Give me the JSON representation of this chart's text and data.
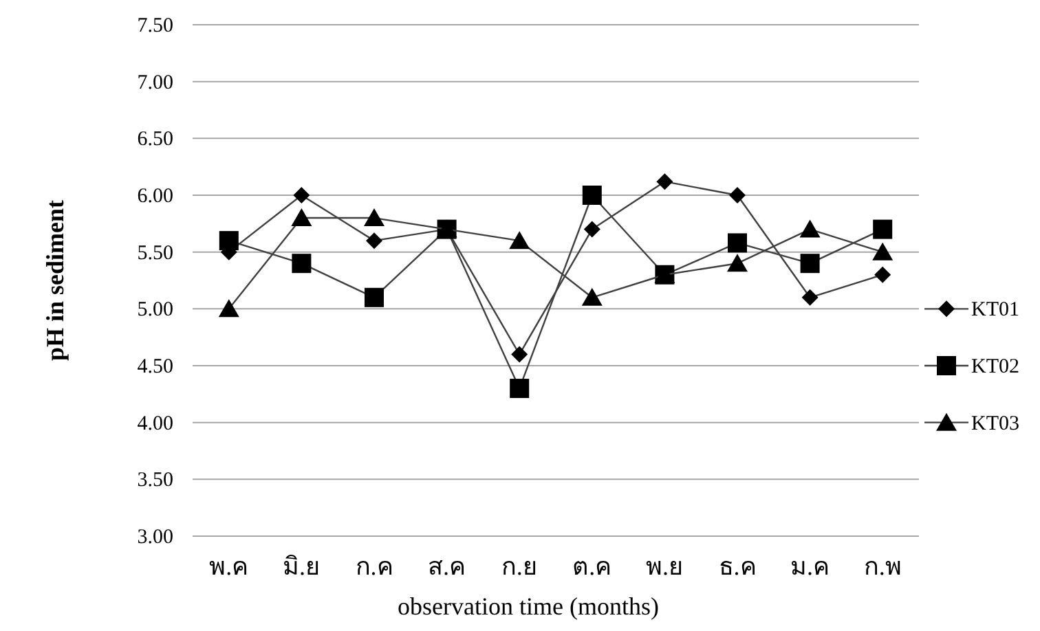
{
  "chart_data": {
    "type": "line",
    "xlabel": "observation time (months)",
    "ylabel": "pH in sediment",
    "categories": [
      "พ.ค",
      "มิ.ย",
      "ก.ค",
      "ส.ค",
      "ก.ย",
      "ต.ค",
      "พ.ย",
      "ธ.ค",
      "ม.ค",
      "ก.พ"
    ],
    "series": [
      {
        "name": "KT01",
        "color": "#000000",
        "marker": "diamond",
        "values": [
          5.5,
          6.0,
          5.6,
          5.7,
          4.6,
          5.7,
          6.12,
          6.0,
          5.1,
          5.3
        ]
      },
      {
        "name": "KT02",
        "color": "#000000",
        "marker": "square",
        "values": [
          5.6,
          5.4,
          5.1,
          5.7,
          4.3,
          6.0,
          5.3,
          5.58,
          5.4,
          5.7
        ]
      },
      {
        "name": "KT03",
        "color": "#000000",
        "marker": "triangle",
        "values": [
          5.0,
          5.8,
          5.8,
          5.7,
          5.6,
          5.1,
          5.3,
          5.4,
          5.7,
          5.5
        ]
      }
    ],
    "ylim": [
      3,
      7.5
    ],
    "yticks": [
      {
        "value": 3,
        "label": "3.00"
      },
      {
        "value": 3.5,
        "label": "3.50"
      },
      {
        "value": 4,
        "label": "4.00"
      },
      {
        "value": 4.5,
        "label": "4.50"
      },
      {
        "value": 5,
        "label": "5.00"
      },
      {
        "value": 5.5,
        "label": "5.50"
      },
      {
        "value": 6,
        "label": "6.00"
      },
      {
        "value": 6.5,
        "label": "6.50"
      },
      {
        "value": 7,
        "label": "7.00"
      },
      {
        "value": 7.5,
        "label": "7.50"
      }
    ],
    "grid": "y",
    "legend": "right",
    "line_style": "solid"
  }
}
